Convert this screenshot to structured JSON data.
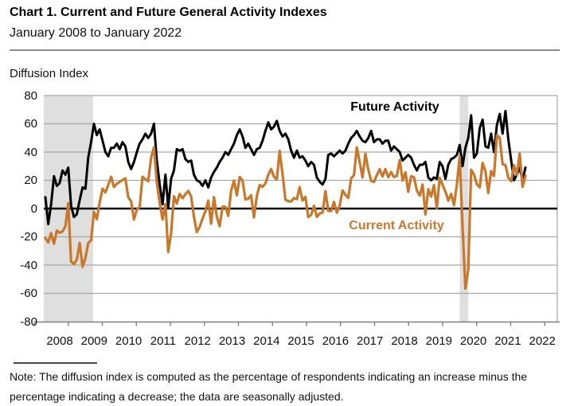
{
  "header": {
    "title": "Chart 1. Current and Future General Activity Indexes",
    "subtitle": "January 2008 to January 2022"
  },
  "axis_titles": {
    "y": "Diffusion Index"
  },
  "annotations": {
    "future_label": "Future Activity",
    "current_label": "Current Activity"
  },
  "note": "Note: The diffusion index is computed as the percentage of respondents indicating an increase minus the percentage indicating a decrease; the data are seasonally adjusted.",
  "colors": {
    "future": "#000000",
    "current": "#C9772A",
    "recession_band": "#DFDFDF",
    "gridline": "#A8A8A8",
    "axis": "#7F7F7F",
    "zero_line": "#000000"
  },
  "chart_data": {
    "type": "line",
    "title": "Chart 1. Current and Future General Activity Indexes",
    "subtitle": "January 2008 to January 2022",
    "ylabel": "Diffusion Index",
    "ylim": [
      -80,
      80
    ],
    "ytick_interval": 20,
    "yticks": [
      "80",
      "60",
      "40",
      "20",
      "0",
      "-20",
      "-40",
      "-60",
      "-80"
    ],
    "xticks": [
      "2008",
      "2009",
      "2010",
      "2011",
      "2012",
      "2013",
      "2014",
      "2015",
      "2016",
      "2017",
      "2018",
      "2019",
      "2020",
      "2021",
      "2022"
    ],
    "frequency": "monthly",
    "x_start": "2008-01",
    "x_end": "2022-01",
    "grid": true,
    "legend_position": "inline-annotations",
    "recession_bands": [
      {
        "from": "2008-01",
        "to": "2009-06",
        "from_idx": -0.6,
        "to_idx": 16.7
      },
      {
        "from": "2020-02",
        "to": "2020-04",
        "from_idx": 145.0,
        "to_idx": 148.0
      }
    ],
    "series": [
      {
        "name": "Future Activity",
        "color": "#000000",
        "values": [
          8,
          -11,
          3,
          23,
          16,
          18,
          27,
          24,
          29,
          2,
          -6,
          -4,
          6,
          15,
          14,
          36,
          47,
          60,
          52,
          56,
          48,
          40,
          37,
          43,
          43,
          46,
          42,
          47,
          44,
          33,
          28,
          33,
          40,
          46,
          49,
          53,
          50,
          53,
          60,
          34,
          17,
          3,
          24,
          1,
          21,
          27,
          42,
          41,
          42,
          35,
          33,
          34,
          24,
          20,
          19,
          16,
          20,
          15,
          22,
          26,
          29,
          33,
          36,
          40,
          38,
          42,
          46,
          52,
          56,
          51,
          43,
          46,
          42,
          38,
          42,
          43,
          48,
          55,
          61,
          56,
          58,
          62,
          55,
          51,
          53,
          49,
          41,
          36,
          41,
          36,
          37,
          34,
          30,
          33,
          31,
          22,
          19,
          17,
          21,
          38,
          39,
          37,
          39,
          41,
          39,
          41,
          46,
          50,
          52,
          55,
          51,
          48,
          47,
          50,
          55,
          47,
          49,
          49,
          46,
          48,
          48,
          41,
          44,
          42,
          40,
          34,
          36,
          38,
          36,
          31,
          27,
          31,
          31,
          33,
          22,
          20,
          22,
          21,
          33,
          30,
          21,
          31,
          35,
          36,
          38,
          45,
          30,
          43,
          50,
          66,
          36,
          39,
          57,
          63,
          44,
          43,
          53,
          40,
          59,
          67,
          53,
          69,
          49,
          34,
          20,
          24,
          29,
          20,
          29
        ]
      },
      {
        "name": "Current Activity",
        "color": "#C9772A",
        "values": [
          -20.9,
          -24,
          -17.4,
          -24.9,
          -15.6,
          -17.1,
          -16.3,
          -12.7,
          3.8,
          -37.5,
          -39.3,
          -36.1,
          -24.3,
          -41.3,
          -35,
          -24.4,
          -22.6,
          -2.2,
          -7.5,
          4.2,
          14.1,
          11.5,
          16.7,
          22.5,
          15.2,
          17.6,
          18.9,
          20.2,
          21.4,
          8,
          5.1,
          -7.7,
          -0.7,
          1,
          22.5,
          20.8,
          19.3,
          35.9,
          43.4,
          18.5,
          3.9,
          -7.7,
          3.2,
          -30.7,
          -17.5,
          8.7,
          3.6,
          10.3,
          7.3,
          10.2,
          12.5,
          8.5,
          -5.8,
          -16.6,
          -12.9,
          -7.1,
          -1.9,
          5.7,
          -10.7,
          8.1,
          -5.8,
          -12.5,
          1.3,
          1.3,
          -5.2,
          12.5,
          19.8,
          9.3,
          22.3,
          19.8,
          6.5,
          7,
          9.4,
          -6.3,
          9,
          16.6,
          15.4,
          17.8,
          23.9,
          28,
          22.5,
          20.7,
          40.8,
          24.5,
          6.3,
          5.2,
          5,
          7.5,
          6.7,
          15.2,
          5.7,
          8.3,
          -6,
          -4.5,
          1.9,
          -5.9,
          -3.5,
          -2.8,
          12.4,
          -1.6,
          -1.8,
          4.7,
          -2.9,
          2,
          12.8,
          9.7,
          7.6,
          21.5,
          23.6,
          43.3,
          32.8,
          22,
          38.8,
          27.6,
          19.5,
          18.9,
          23.8,
          27.9,
          22.7,
          27.9,
          22.2,
          25.8,
          22.3,
          23.2,
          34.4,
          19.9,
          25.7,
          11.9,
          22.9,
          22.2,
          12.9,
          9.1,
          17,
          -4.1,
          13.7,
          8.5,
          16.6,
          0.3,
          21.8,
          16.8,
          12,
          5.6,
          10.4,
          2.4,
          17,
          36.7,
          -12.7,
          -56.6,
          -43.1,
          27.5,
          24.1,
          17.2,
          15,
          32.3,
          26.3,
          11.1,
          26.5,
          23.1,
          51.8,
          50.2,
          31.5,
          30.7,
          21.9,
          19.4,
          30.7,
          23.8,
          39,
          15.4,
          23.2
        ]
      }
    ]
  }
}
